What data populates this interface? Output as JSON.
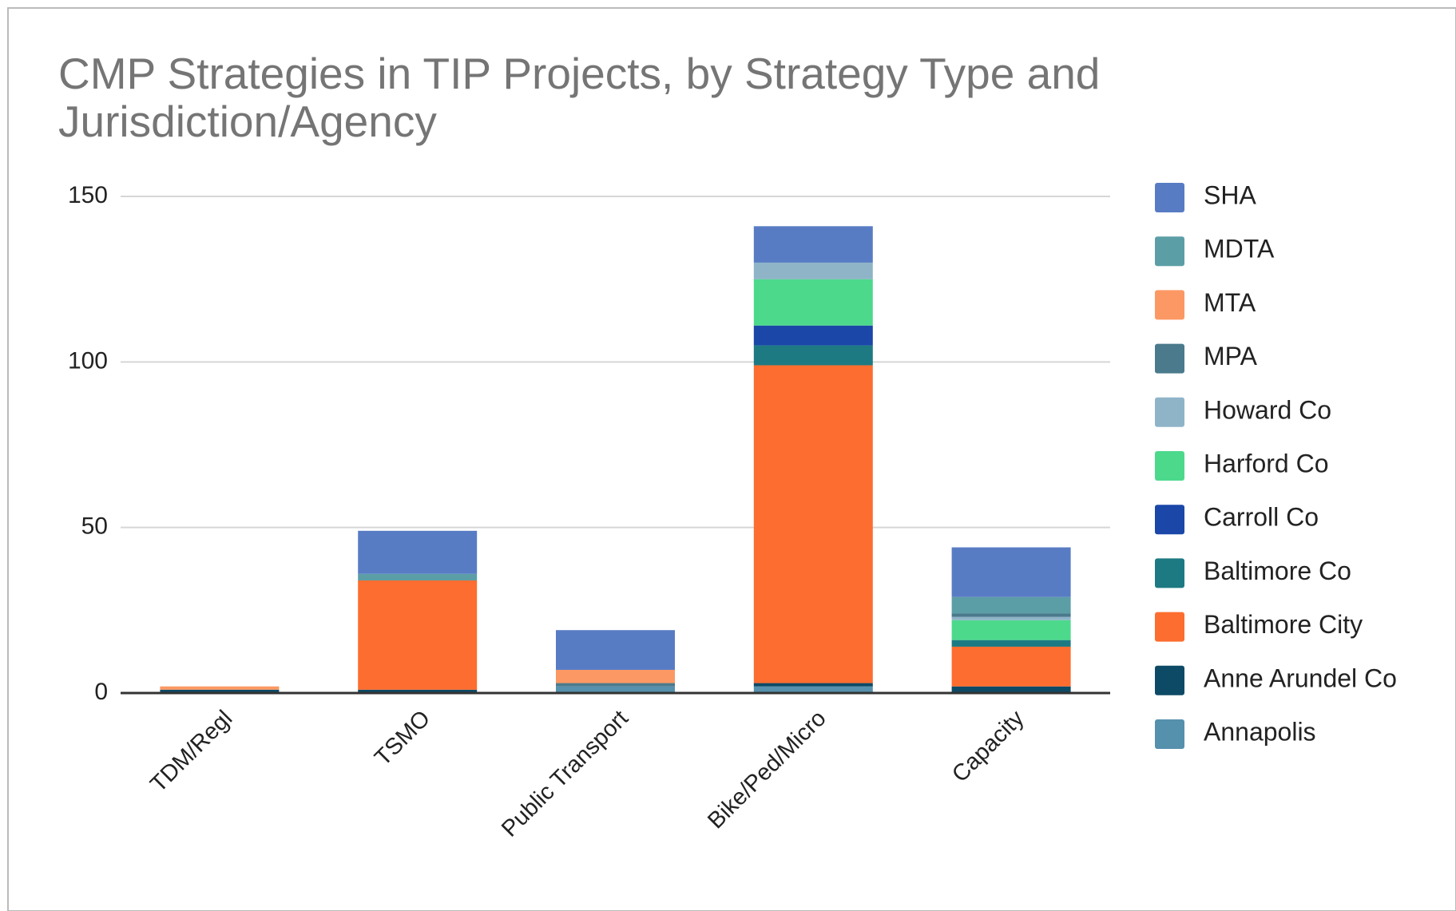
{
  "chart_data": {
    "type": "stacked_bar",
    "title": "CMP Strategies in TIP Projects, by Strategy Type and Jurisdiction/Agency",
    "categories": [
      "TDM/Regl",
      "TSMO",
      "Public Transport",
      "Bike/Ped/Micro",
      "Capacity"
    ],
    "ylim": [
      0,
      150
    ],
    "yticks": [
      0,
      50,
      100,
      150
    ],
    "grid": true,
    "legend": "right",
    "series": [
      {
        "name": "SHA",
        "color": "#587cc4",
        "values": [
          0,
          13,
          12,
          11,
          15
        ]
      },
      {
        "name": "MDTA",
        "color": "#5c9ea6",
        "values": [
          0,
          2,
          0,
          0,
          5
        ]
      },
      {
        "name": "MTA",
        "color": "#fc9863",
        "values": [
          1,
          0,
          4,
          0,
          0
        ]
      },
      {
        "name": "MPA",
        "color": "#4a7a8c",
        "values": [
          0,
          0,
          1,
          0,
          1
        ]
      },
      {
        "name": "Howard Co",
        "color": "#8fb4c8",
        "values": [
          0,
          0,
          0,
          5,
          1
        ]
      },
      {
        "name": "Harford Co",
        "color": "#4cd98c",
        "values": [
          0,
          0,
          0,
          14,
          6
        ]
      },
      {
        "name": "Carroll Co",
        "color": "#1a47a8",
        "values": [
          0,
          0,
          0,
          6,
          0
        ]
      },
      {
        "name": "Baltimore Co",
        "color": "#1d7a82",
        "values": [
          0,
          0,
          0,
          6,
          2
        ]
      },
      {
        "name": "Baltimore City",
        "color": "#fd6d2f",
        "values": [
          0,
          33,
          0,
          96,
          12
        ]
      },
      {
        "name": "Anne Arundel Co",
        "color": "#0d4a66",
        "values": [
          1,
          1,
          0,
          1,
          2
        ]
      },
      {
        "name": "Annapolis",
        "color": "#5590ad",
        "values": [
          0,
          0,
          2,
          2,
          0
        ]
      }
    ]
  }
}
